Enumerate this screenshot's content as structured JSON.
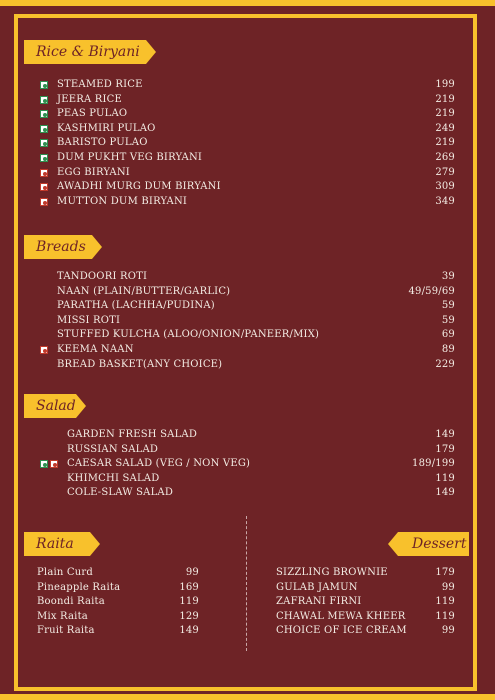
{
  "colors": {
    "background": "#6e2326",
    "accent": "#f8c12c",
    "text": "#f3ece4",
    "veg": "#2f8f4e",
    "nonveg": "#c0392b"
  },
  "sections": {
    "rice": {
      "title": "Rice & Biryani",
      "items": [
        {
          "name": "STEAMED RICE",
          "price": "199",
          "marks": [
            "veg"
          ]
        },
        {
          "name": "JEERA RICE",
          "price": "219",
          "marks": [
            "veg"
          ]
        },
        {
          "name": "PEAS PULAO",
          "price": "219",
          "marks": [
            "veg"
          ]
        },
        {
          "name": "KASHMIRI PULAO",
          "price": "249",
          "marks": [
            "veg"
          ]
        },
        {
          "name": "BARISTO PULAO",
          "price": "219",
          "marks": [
            "veg"
          ]
        },
        {
          "name": "DUM PUKHT VEG BIRYANI",
          "price": "269",
          "marks": [
            "veg"
          ]
        },
        {
          "name": "EGG BIRYANI",
          "price": "279",
          "marks": [
            "nonveg"
          ]
        },
        {
          "name": "AWADHI MURG DUM BIRYANI",
          "price": "309",
          "marks": [
            "nonveg"
          ]
        },
        {
          "name": "MUTTON DUM BIRYANI",
          "price": "349",
          "marks": [
            "nonveg"
          ]
        }
      ]
    },
    "breads": {
      "title": "Breads",
      "items": [
        {
          "name": "TANDOORI ROTI",
          "price": "39",
          "marks": []
        },
        {
          "name": "NAAN (PLAIN/BUTTER/GARLIC)",
          "price": "49/59/69",
          "marks": []
        },
        {
          "name": "PARATHA (LACHHA/PUDINA)",
          "price": "59",
          "marks": []
        },
        {
          "name": "MISSI ROTI",
          "price": "59",
          "marks": []
        },
        {
          "name": "STUFFED KULCHA (ALOO/ONION/PANEER/MIX)",
          "price": "69",
          "marks": []
        },
        {
          "name": "KEEMA NAAN",
          "price": "89",
          "marks": [
            "nonveg"
          ]
        },
        {
          "name": "BREAD BASKET(ANY CHOICE)",
          "price": "229",
          "marks": []
        }
      ]
    },
    "salad": {
      "title": "Salad",
      "items": [
        {
          "name": "GARDEN FRESH SALAD",
          "price": "149",
          "marks": []
        },
        {
          "name": "RUSSIAN SALAD",
          "price": "179",
          "marks": []
        },
        {
          "name": "CAESAR SALAD (VEG / NON VEG)",
          "price": "189/199",
          "marks": [
            "veg",
            "nonveg"
          ]
        },
        {
          "name": "KHIMCHI SALAD",
          "price": "119",
          "marks": []
        },
        {
          "name": "COLE-SLAW SALAD",
          "price": "149",
          "marks": []
        }
      ]
    },
    "raita": {
      "title": "Raita",
      "items": [
        {
          "name": "Plain Curd",
          "price": "99"
        },
        {
          "name": "Pineapple Raita",
          "price": "169"
        },
        {
          "name": "Boondi Raita",
          "price": "119"
        },
        {
          "name": "Mix Raita",
          "price": "129"
        },
        {
          "name": "Fruit Raita",
          "price": "149"
        }
      ]
    },
    "dessert": {
      "title": "Dessert",
      "items": [
        {
          "name": "SIZZLING BROWNIE",
          "price": "179"
        },
        {
          "name": "GULAB JAMUN",
          "price": "99"
        },
        {
          "name": "ZAFRANI FIRNI",
          "price": "119"
        },
        {
          "name": "CHAWAL MEWA KHEER",
          "price": "119"
        },
        {
          "name": "CHOICE OF ICE CREAM",
          "price": "99"
        }
      ]
    }
  }
}
